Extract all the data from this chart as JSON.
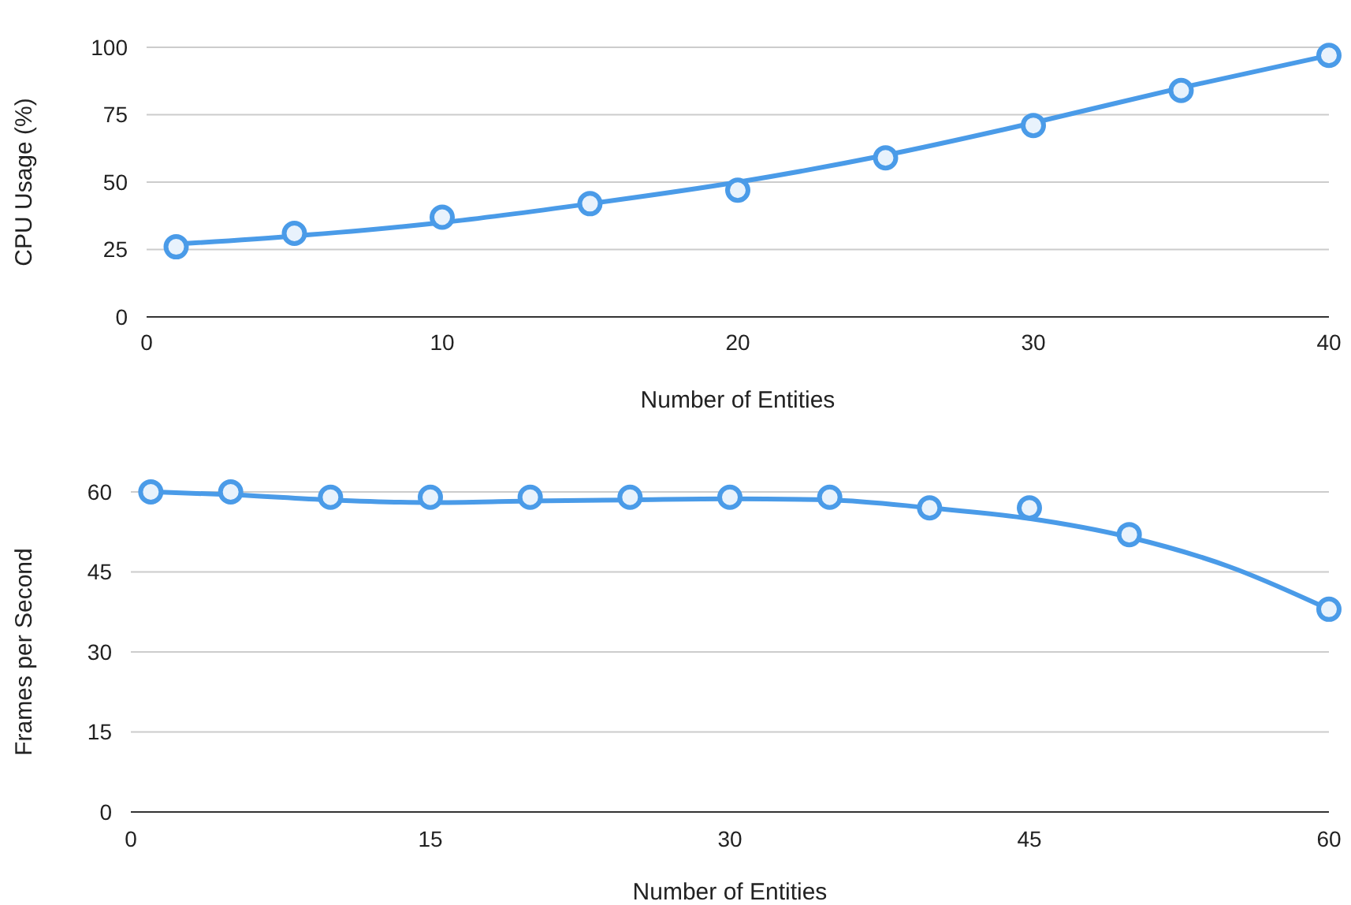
{
  "chart_data": [
    {
      "type": "scatter",
      "xlabel": "Number of Entities",
      "ylabel": "CPU Usage (%)",
      "xlim": [
        0,
        40
      ],
      "xticks": [
        0,
        10,
        20,
        30,
        40
      ],
      "ylim": [
        0,
        100
      ],
      "yticks": [
        0,
        25,
        50,
        75,
        100
      ],
      "grid": "y",
      "series": [
        {
          "type": "line",
          "color": "#4a9be8",
          "marker": "none",
          "line_style": "solid",
          "x": [
            1,
            5,
            10,
            15,
            20,
            25,
            30,
            35,
            40
          ],
          "values": [
            27,
            30,
            35,
            42,
            50,
            60,
            72,
            85,
            97
          ]
        },
        {
          "color": "#4a9be8",
          "marker": "circle",
          "x": [
            1,
            5,
            10,
            15,
            20,
            25,
            30,
            35,
            40
          ],
          "values": [
            26,
            31,
            37,
            42,
            47,
            59,
            71,
            84,
            97
          ]
        }
      ]
    },
    {
      "type": "scatter",
      "xlabel": "Number of Entities",
      "ylabel": "Frames per Second",
      "xlim": [
        0,
        60
      ],
      "xticks": [
        0,
        15,
        30,
        45,
        60
      ],
      "ylim": [
        0,
        60
      ],
      "yticks": [
        0,
        15,
        30,
        45,
        60
      ],
      "grid": "y",
      "series": [
        {
          "type": "line",
          "color": "#4a9be8",
          "marker": "none",
          "line_style": "solid",
          "x": [
            1,
            5,
            10,
            15,
            20,
            25,
            30,
            35,
            40,
            45,
            50,
            55,
            60
          ],
          "values": [
            60,
            59.5,
            58.5,
            58,
            58.3,
            58.5,
            58.7,
            58.5,
            57,
            55,
            51.5,
            46,
            38
          ]
        },
        {
          "color": "#4a9be8",
          "marker": "circle",
          "x": [
            1,
            5,
            10,
            15,
            20,
            25,
            30,
            35,
            40,
            45,
            50,
            60
          ],
          "values": [
            60,
            60,
            59,
            59,
            59,
            59,
            59,
            59,
            57,
            57,
            52,
            38
          ]
        }
      ]
    }
  ]
}
